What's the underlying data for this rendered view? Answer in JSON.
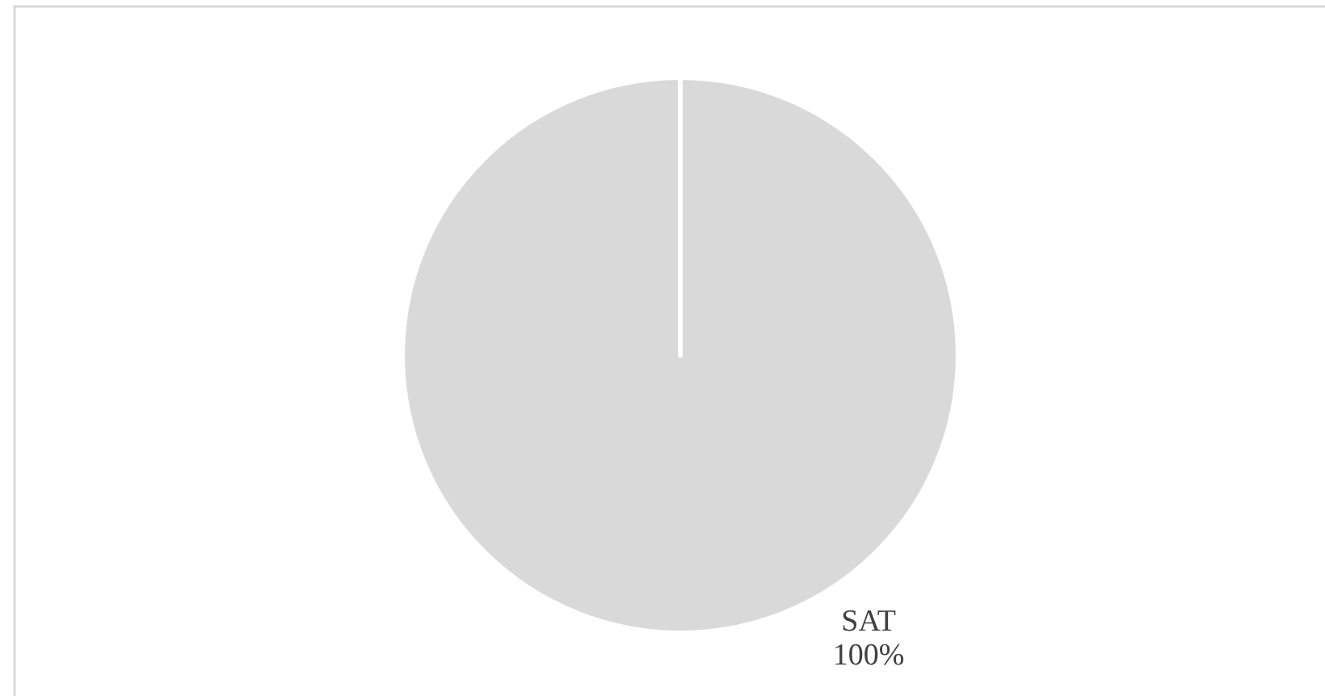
{
  "chart_data": {
    "type": "pie",
    "categories": [
      "SAT"
    ],
    "values": [
      100
    ],
    "colors": [
      "#d9d9d9"
    ],
    "value_labels": [
      "100%"
    ]
  }
}
